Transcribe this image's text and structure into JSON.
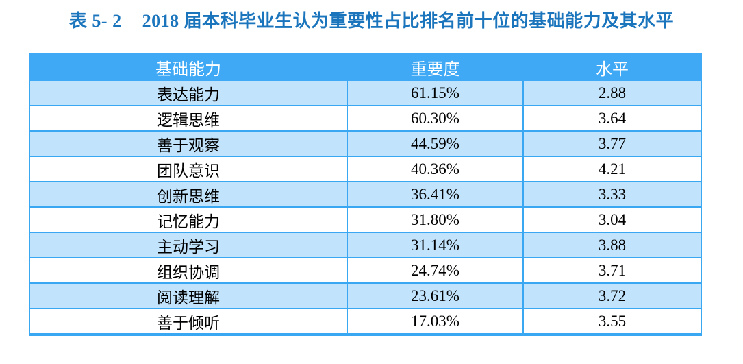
{
  "caption": {
    "label": "表 5- 2",
    "title": "2018 届本科毕业生认为重要性占比排名前十位的基础能力及其水平"
  },
  "table": {
    "headers": [
      "基础能力",
      "重要度",
      "水平"
    ],
    "rows": [
      {
        "ability": "表达能力",
        "importance": "61.15%",
        "level": "2.88"
      },
      {
        "ability": "逻辑思维",
        "importance": "60.30%",
        "level": "3.64"
      },
      {
        "ability": "善于观察",
        "importance": "44.59%",
        "level": "3.77"
      },
      {
        "ability": "团队意识",
        "importance": "40.36%",
        "level": "4.21"
      },
      {
        "ability": "创新思维",
        "importance": "36.41%",
        "level": "3.33"
      },
      {
        "ability": "记忆能力",
        "importance": "31.80%",
        "level": "3.04"
      },
      {
        "ability": "主动学习",
        "importance": "31.14%",
        "level": "3.88"
      },
      {
        "ability": "组织协调",
        "importance": "24.74%",
        "level": "3.71"
      },
      {
        "ability": "阅读理解",
        "importance": "23.61%",
        "level": "3.72"
      },
      {
        "ability": "善于倾听",
        "importance": "17.03%",
        "level": "3.55"
      }
    ]
  },
  "colors": {
    "caption_text": "#1b75bc",
    "header_bg": "#3fa9f5",
    "header_text": "#ffffff",
    "row_alt_bg": "#c1e3fc",
    "row_bg": "#ffffff",
    "border": "#3aa7f3",
    "cell_text": "#000000"
  }
}
